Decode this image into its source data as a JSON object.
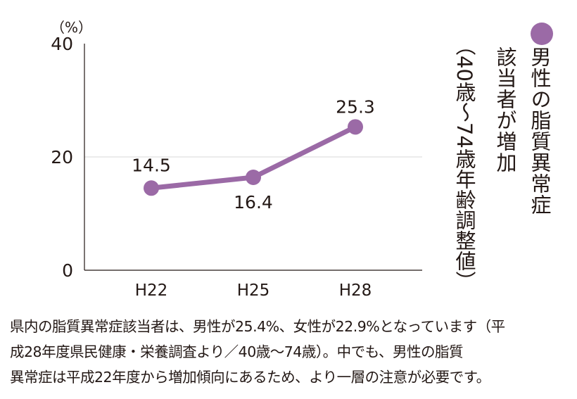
{
  "chart_data": {
    "type": "line",
    "unit_label": "（%）",
    "categories": [
      "H22",
      "H25",
      "H28"
    ],
    "series": [
      {
        "name": "男性の脂質異常症該当者が増加",
        "values": [
          14.5,
          16.4,
          25.3
        ],
        "color": "#9b6aa6"
      }
    ],
    "ylim": [
      0,
      40
    ],
    "yticks": [
      "0",
      "20",
      "40"
    ],
    "data_labels": [
      "14.5",
      "16.4",
      "25.3"
    ],
    "grid": true
  },
  "legend": {
    "line1": "男性の脂質異常症",
    "line2": "該当者が増加",
    "line3": "（40歳～74歳年齢調整値）"
  },
  "caption": {
    "line1": "県内の脂質異常症該当者は、男性が25.4%、女性が22.9%となっています（平",
    "line2": "成28年度県民健康・栄養調査より／40歳～74歳）。中でも、男性の脂質",
    "line3": "異常症は平成22年度から増加傾向にあるため、より一層の注意が必要です。"
  }
}
